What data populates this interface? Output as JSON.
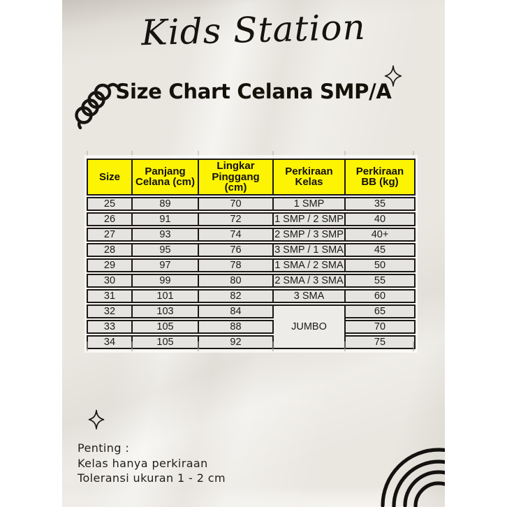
{
  "brand": {
    "name": "Kids Station"
  },
  "title": "Size Chart Celana SMP/A",
  "table": {
    "columns": [
      "Size",
      "Panjang Celana (cm)",
      "Lingkar Pinggang (cm)",
      "Perkiraan Kelas",
      "Perkiraan BB (kg)"
    ],
    "rows": [
      [
        "25",
        "89",
        "70",
        "1 SMP",
        "35"
      ],
      [
        "26",
        "91",
        "72",
        "1 SMP / 2 SMP",
        "40"
      ],
      [
        "27",
        "93",
        "74",
        "2 SMP / 3 SMP",
        "40+"
      ],
      [
        "28",
        "95",
        "76",
        "3 SMP / 1 SMA",
        "45"
      ],
      [
        "29",
        "97",
        "78",
        "1 SMA / 2 SMA",
        "50"
      ],
      [
        "30",
        "99",
        "80",
        "2 SMA / 3 SMA",
        "55"
      ],
      [
        "31",
        "101",
        "82",
        "3 SMA",
        "60"
      ],
      [
        "32",
        "103",
        "84",
        {
          "text": "JUMBO",
          "rowspan": 3
        },
        "65"
      ],
      [
        "33",
        "105",
        "88",
        null,
        "70"
      ],
      [
        "34",
        "105",
        "92",
        null,
        "75"
      ]
    ]
  },
  "notes": {
    "heading": "Penting :",
    "lines": [
      "Kelas hanya perkiraan",
      "Toleransi ukuran 1 - 2 cm"
    ]
  },
  "icons": {
    "squiggle": "coil-squiggle",
    "sparkle_top": "four-point-sparkle",
    "sparkle_bottom": "four-point-sparkle",
    "rainbow": "rainbow-arcs"
  },
  "colors": {
    "page_bg": "#ffffff",
    "poster_bg": "#eae7e1",
    "header_bg": "#fcf402",
    "cell_bg": "#e6e4e1",
    "merged_cell_bg": "#edece9",
    "table_border": "#1b1815",
    "ink": "#16130f"
  }
}
